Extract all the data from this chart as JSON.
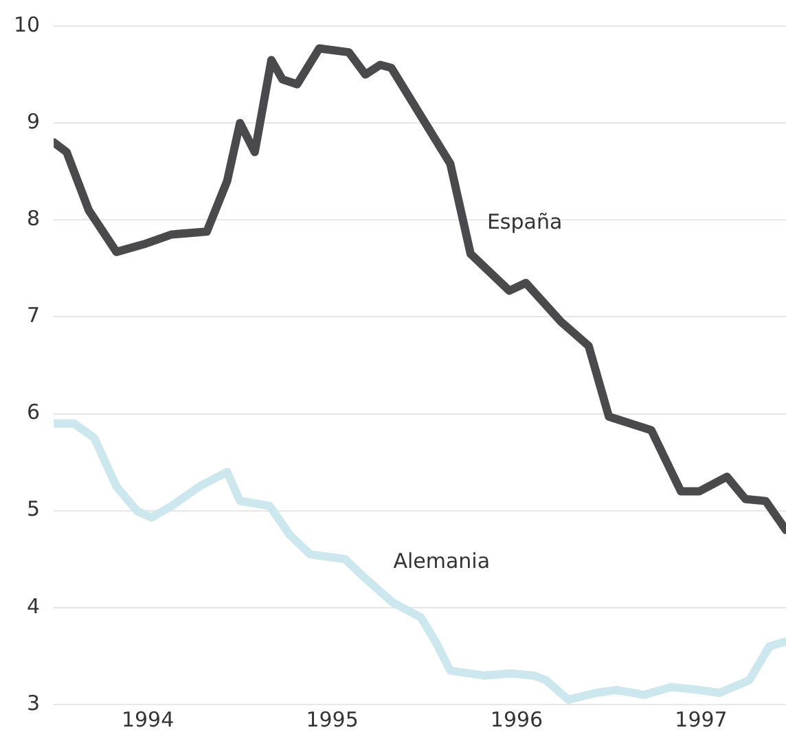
{
  "chart_data": {
    "type": "line",
    "xlim": [
      1993.49,
      1997.46
    ],
    "xticks": [
      1994,
      1995,
      1996,
      1997
    ],
    "ylim": [
      3,
      10
    ],
    "yticks": [
      3,
      4,
      5,
      6,
      7,
      8,
      9,
      10
    ],
    "grid": "y",
    "legend": false,
    "marker": "none",
    "line_style": "solid",
    "series": [
      {
        "name": "España",
        "color": "#4a4a4c",
        "x": [
          1993.49,
          1993.56,
          1993.68,
          1993.83,
          1993.98,
          1994.13,
          1994.32,
          1994.43,
          1994.5,
          1994.58,
          1994.67,
          1994.73,
          1994.81,
          1994.93,
          1995.09,
          1995.18,
          1995.26,
          1995.32,
          1995.64,
          1995.75,
          1995.96,
          1996.05,
          1996.24,
          1996.39,
          1996.5,
          1996.73,
          1996.89,
          1996.99,
          1997.14,
          1997.24,
          1997.35,
          1997.46
        ],
        "values": [
          8.8,
          8.7,
          8.1,
          7.67,
          7.75,
          7.85,
          7.88,
          8.4,
          9.0,
          8.7,
          9.65,
          9.45,
          9.4,
          9.77,
          9.73,
          9.5,
          9.6,
          9.57,
          8.58,
          7.65,
          7.27,
          7.35,
          6.95,
          6.7,
          5.97,
          5.83,
          5.2,
          5.2,
          5.35,
          5.12,
          5.1,
          4.8
        ]
      },
      {
        "name": "Alemania",
        "color": "#cce8ee",
        "x": [
          1993.49,
          1993.6,
          1993.71,
          1993.83,
          1993.94,
          1994.02,
          1994.13,
          1994.28,
          1994.43,
          1994.5,
          1994.66,
          1994.77,
          1994.88,
          1995.07,
          1995.18,
          1995.33,
          1995.48,
          1995.56,
          1995.64,
          1995.82,
          1995.97,
          1996.09,
          1996.16,
          1996.28,
          1996.43,
          1996.54,
          1996.69,
          1996.84,
          1996.99,
          1997.1,
          1997.26,
          1997.37,
          1997.46
        ],
        "values": [
          5.9,
          5.9,
          5.75,
          5.25,
          5.0,
          4.93,
          5.05,
          5.25,
          5.4,
          5.1,
          5.05,
          4.75,
          4.55,
          4.5,
          4.3,
          4.05,
          3.9,
          3.65,
          3.35,
          3.3,
          3.32,
          3.3,
          3.25,
          3.05,
          3.12,
          3.15,
          3.1,
          3.18,
          3.15,
          3.12,
          3.25,
          3.6,
          3.65
        ]
      }
    ]
  }
}
